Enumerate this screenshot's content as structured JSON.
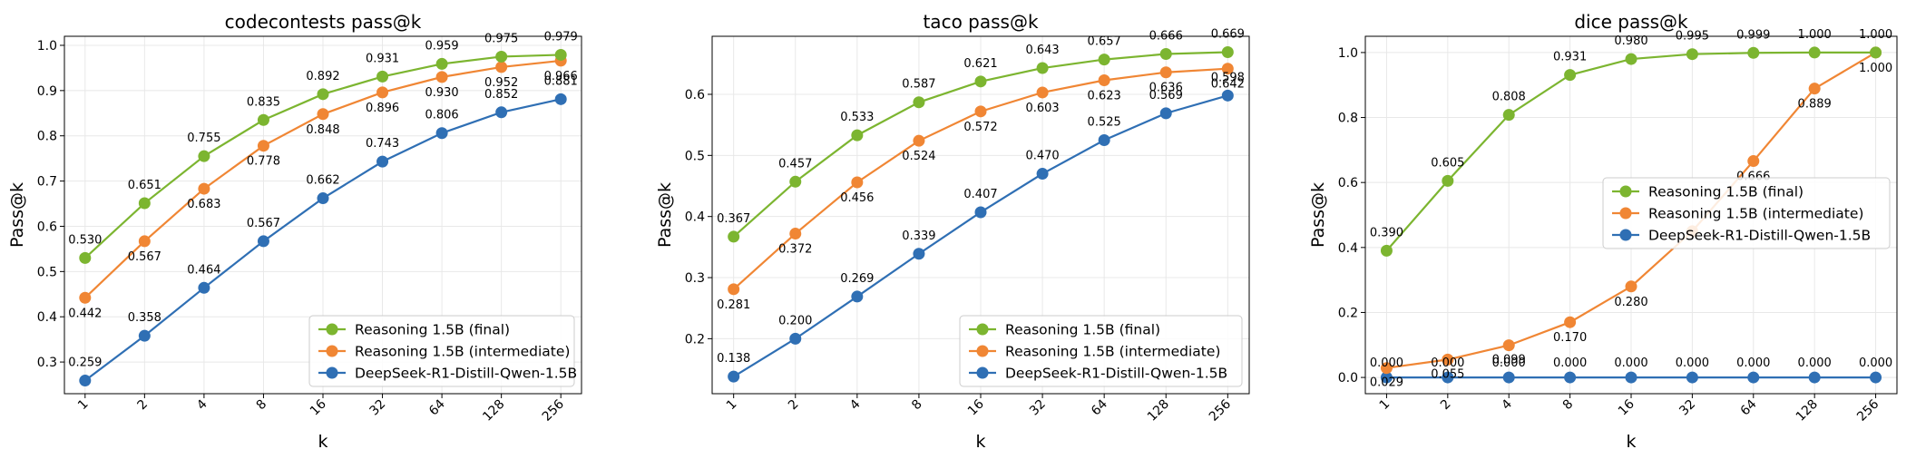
{
  "chart_data": [
    {
      "type": "line",
      "title": "codecontests pass@k",
      "xlabel": "k",
      "ylabel": "Pass@k",
      "categories": [
        "1",
        "2",
        "4",
        "8",
        "16",
        "32",
        "64",
        "128",
        "256"
      ],
      "ylim": [
        0.23,
        1.02
      ],
      "yticks": [
        0.3,
        0.4,
        0.5,
        0.6,
        0.7,
        0.8,
        0.9,
        1.0
      ],
      "ytick_labels": [
        "0.3",
        "0.4",
        "0.5",
        "0.6",
        "0.7",
        "0.8",
        "0.9",
        "1.0"
      ],
      "grid": true,
      "legend_position": "lower-right",
      "series": [
        {
          "name": "Reasoning 1.5B (final)",
          "color": "#7cb530",
          "values": [
            0.53,
            0.651,
            0.755,
            0.835,
            0.892,
            0.931,
            0.959,
            0.975,
            0.979
          ],
          "labels": [
            "0.530",
            "0.651",
            "0.755",
            "0.835",
            "0.892",
            "0.931",
            "0.959",
            "0.975",
            "0.979"
          ]
        },
        {
          "name": "Reasoning 1.5B (intermediate)",
          "color": "#f08634",
          "values": [
            0.442,
            0.567,
            0.683,
            0.778,
            0.848,
            0.896,
            0.93,
            0.952,
            0.966
          ],
          "labels": [
            "0.442",
            "0.567",
            "0.683",
            "0.778",
            "0.848",
            "0.896",
            "0.930",
            "0.952",
            "0.966"
          ]
        },
        {
          "name": "DeepSeek-R1-Distill-Qwen-1.5B",
          "color": "#2f6fb4",
          "values": [
            0.259,
            0.358,
            0.464,
            0.567,
            0.662,
            0.743,
            0.806,
            0.852,
            0.881
          ],
          "labels": [
            "0.259",
            "0.358",
            "0.464",
            "0.567",
            "0.662",
            "0.743",
            "0.806",
            "0.852",
            "0.881"
          ]
        }
      ]
    },
    {
      "type": "line",
      "title": "taco pass@k",
      "xlabel": "k",
      "ylabel": "Pass@k",
      "categories": [
        "1",
        "2",
        "4",
        "8",
        "16",
        "32",
        "64",
        "128",
        "256"
      ],
      "ylim": [
        0.11,
        0.695
      ],
      "yticks": [
        0.2,
        0.3,
        0.4,
        0.5,
        0.6
      ],
      "ytick_labels": [
        "0.2",
        "0.3",
        "0.4",
        "0.5",
        "0.6"
      ],
      "grid": true,
      "legend_position": "lower-right",
      "series": [
        {
          "name": "Reasoning 1.5B (final)",
          "color": "#7cb530",
          "values": [
            0.367,
            0.457,
            0.533,
            0.587,
            0.621,
            0.643,
            0.657,
            0.666,
            0.669
          ],
          "labels": [
            "0.367",
            "0.457",
            "0.533",
            "0.587",
            "0.621",
            "0.643",
            "0.657",
            "0.666",
            "0.669"
          ]
        },
        {
          "name": "Reasoning 1.5B (intermediate)",
          "color": "#f08634",
          "values": [
            0.281,
            0.372,
            0.456,
            0.524,
            0.572,
            0.603,
            0.623,
            0.636,
            0.642
          ],
          "labels": [
            "0.281",
            "0.372",
            "0.456",
            "0.524",
            "0.572",
            "0.603",
            "0.623",
            "0.636",
            "0.642"
          ]
        },
        {
          "name": "DeepSeek-R1-Distill-Qwen-1.5B",
          "color": "#2f6fb4",
          "values": [
            0.138,
            0.2,
            0.269,
            0.339,
            0.407,
            0.47,
            0.525,
            0.569,
            0.598
          ],
          "labels": [
            "0.138",
            "0.200",
            "0.269",
            "0.339",
            "0.407",
            "0.470",
            "0.525",
            "0.569",
            "0.598"
          ]
        }
      ]
    },
    {
      "type": "line",
      "title": "dice pass@k",
      "xlabel": "k",
      "ylabel": "Pass@k",
      "categories": [
        "1",
        "2",
        "4",
        "8",
        "16",
        "32",
        "64",
        "128",
        "256"
      ],
      "ylim": [
        -0.05,
        1.05
      ],
      "yticks": [
        0.0,
        0.2,
        0.4,
        0.6,
        0.8,
        1.0
      ],
      "ytick_labels": [
        "0.0",
        "0.2",
        "0.4",
        "0.6",
        "0.8",
        "1.0"
      ],
      "grid": true,
      "legend_position": "center-right",
      "series": [
        {
          "name": "Reasoning 1.5B (final)",
          "color": "#7cb530",
          "values": [
            0.39,
            0.605,
            0.808,
            0.931,
            0.98,
            0.995,
            0.999,
            1.0,
            1.0
          ],
          "labels": [
            "0.390",
            "0.605",
            "0.808",
            "0.931",
            "0.980",
            "0.995",
            "0.999",
            "1.000",
            "1.000"
          ]
        },
        {
          "name": "Reasoning 1.5B (intermediate)",
          "color": "#f08634",
          "values": [
            0.029,
            0.055,
            0.099,
            0.17,
            0.28,
            0.45,
            0.666,
            0.889,
            1.0
          ],
          "labels": [
            "0.029",
            "0.055",
            "0.099",
            "0.170",
            "0.280",
            "",
            "0.666",
            "0.889",
            "1.000"
          ]
        },
        {
          "name": "DeepSeek-R1-Distill-Qwen-1.5B",
          "color": "#2f6fb4",
          "values": [
            0.0,
            0.0,
            0.0,
            0.0,
            0.0,
            0.0,
            0.0,
            0.0,
            0.0
          ],
          "labels": [
            "0.000",
            "0.000",
            "0.000",
            "0.000",
            "0.000",
            "0.000",
            "0.000",
            "0.000",
            "0.000"
          ]
        }
      ]
    }
  ]
}
